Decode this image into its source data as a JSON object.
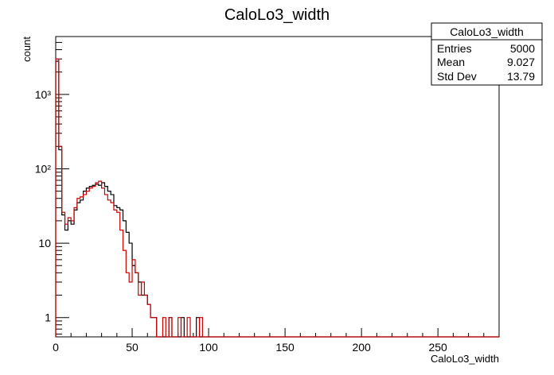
{
  "chart_data": {
    "type": "histogram",
    "title": "CaloLo3_width",
    "xlabel": "CaloLo3_width",
    "ylabel": "count",
    "xlim": [
      0,
      290
    ],
    "ylim": [
      0.55,
      6000
    ],
    "y_scale": "log",
    "bin_width": 2,
    "x_ticks": [
      0,
      50,
      100,
      150,
      200,
      250
    ],
    "x_tick_labels": [
      "0",
      "50",
      "100",
      "150",
      "200",
      "250"
    ],
    "y_ticks": [
      1,
      10,
      100,
      1000
    ],
    "y_tick_labels": [
      "1",
      "10",
      "10²",
      "10³"
    ],
    "stats_box": {
      "title": "CaloLo3_width",
      "rows": [
        {
          "label": "Entries",
          "value": "5000"
        },
        {
          "label": "Mean",
          "value": "9.027"
        },
        {
          "label": "Std Dev",
          "value": "13.79"
        }
      ]
    },
    "series": [
      {
        "color": "#000000",
        "values": [
          2800,
          180,
          24,
          15,
          20,
          18,
          28,
          35,
          38,
          50,
          55,
          58,
          60,
          62,
          60,
          65,
          58,
          50,
          45,
          32,
          30,
          28,
          20,
          14,
          10,
          5,
          4,
          3,
          2,
          2,
          1.5,
          1,
          1,
          0,
          0,
          0,
          0,
          1,
          0,
          0,
          0,
          1,
          0,
          0,
          0,
          0,
          1,
          0,
          0,
          0,
          0,
          0,
          0,
          0,
          0,
          0,
          0,
          0,
          0,
          0,
          0,
          0,
          0,
          0,
          0,
          0,
          0,
          0,
          0,
          0,
          0,
          0,
          0,
          0,
          0,
          0,
          0,
          0,
          0,
          0,
          0,
          0,
          0,
          0,
          0,
          0,
          0,
          0,
          0,
          0,
          0,
          0,
          0,
          0,
          0,
          0,
          0,
          0,
          0,
          0,
          0,
          0,
          0,
          0,
          0,
          0,
          0,
          0,
          0,
          0,
          0,
          0,
          0,
          0,
          0,
          0,
          0,
          0,
          0,
          0,
          0,
          0,
          0,
          0,
          0,
          0,
          0,
          0,
          0,
          0,
          0,
          0,
          0,
          0,
          0,
          0,
          0,
          0,
          0,
          0,
          0,
          0,
          0,
          0,
          0
        ]
      },
      {
        "color": "#cc0000",
        "values": [
          3000,
          200,
          26,
          18,
          22,
          20,
          30,
          40,
          42,
          45,
          50,
          55,
          58,
          65,
          68,
          55,
          45,
          38,
          35,
          28,
          26,
          15,
          8,
          4,
          3,
          6,
          4,
          2,
          3,
          2,
          1.5,
          1,
          1,
          0,
          0,
          1,
          0,
          1,
          0,
          0,
          1,
          0,
          0,
          1,
          0,
          0,
          0,
          1,
          0,
          0,
          0,
          0,
          0,
          0,
          0,
          0,
          0,
          0,
          0,
          0,
          0,
          0,
          0,
          0,
          0,
          0,
          0,
          0,
          0,
          0,
          0,
          0,
          0,
          0,
          0,
          0,
          0,
          0,
          0,
          0,
          0,
          0,
          0,
          0,
          0,
          0,
          0,
          0,
          0,
          0,
          0,
          0,
          0,
          0,
          0,
          0,
          0,
          0,
          0,
          0,
          0,
          0,
          0,
          0,
          0,
          0,
          0,
          0,
          0,
          0,
          0,
          0,
          0,
          0,
          0,
          0,
          0,
          0,
          0,
          0,
          0,
          0,
          0,
          0,
          0,
          0,
          0,
          0,
          0,
          0,
          0,
          0,
          0,
          0,
          0,
          0,
          0,
          0,
          0,
          0,
          0,
          0,
          0,
          0,
          0
        ]
      }
    ]
  }
}
